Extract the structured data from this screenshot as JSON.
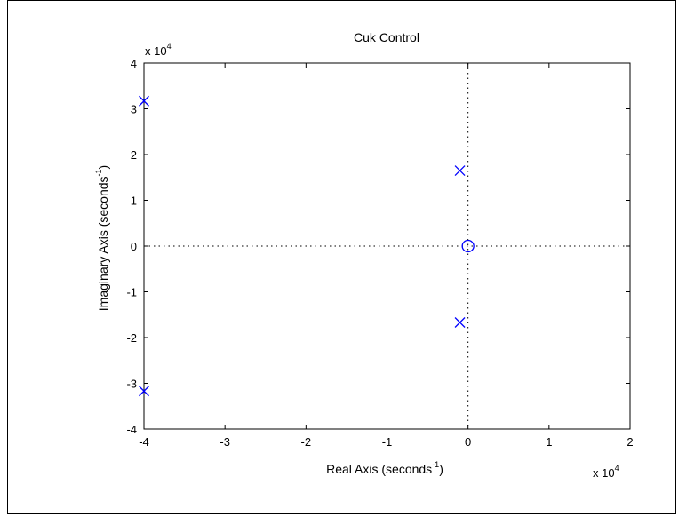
{
  "chart_data": {
    "type": "scatter",
    "title": "Cuk Control",
    "xlabel": "Real Axis (seconds",
    "xlabel_sup": "-1",
    "xlabel_close": ")",
    "ylabel": "Imaginary Axis (seconds",
    "ylabel_sup": "-1",
    "ylabel_close": ")",
    "x_exponent_base": "x 10",
    "x_exponent_power": "4",
    "y_exponent_base": "x 10",
    "y_exponent_power": "4",
    "xlim": [
      -4,
      2
    ],
    "ylim": [
      -4,
      4
    ],
    "scale_factor": 10000,
    "xticks": [
      -4,
      -3,
      -2,
      -1,
      0,
      1,
      2
    ],
    "yticks": [
      -4,
      -3,
      -2,
      -1,
      0,
      1,
      2,
      3,
      4
    ],
    "xtick_labels": [
      "-4",
      "-3",
      "-2",
      "-1",
      "0",
      "1",
      "2"
    ],
    "ytick_labels": [
      "-4",
      "-3",
      "-2",
      "-1",
      "0",
      "1",
      "2",
      "3",
      "4"
    ],
    "grid": false,
    "marker_color": "#0000ff",
    "series": [
      {
        "marker": "x",
        "points": [
          {
            "x": -4.0,
            "y": 3.17
          },
          {
            "x": -4.0,
            "y": -3.17
          },
          {
            "x": -0.1,
            "y": 1.65
          },
          {
            "x": -0.1,
            "y": -1.67
          }
        ]
      },
      {
        "marker": "o",
        "points": [
          {
            "x": 0.0,
            "y": 0.0
          }
        ]
      }
    ]
  }
}
